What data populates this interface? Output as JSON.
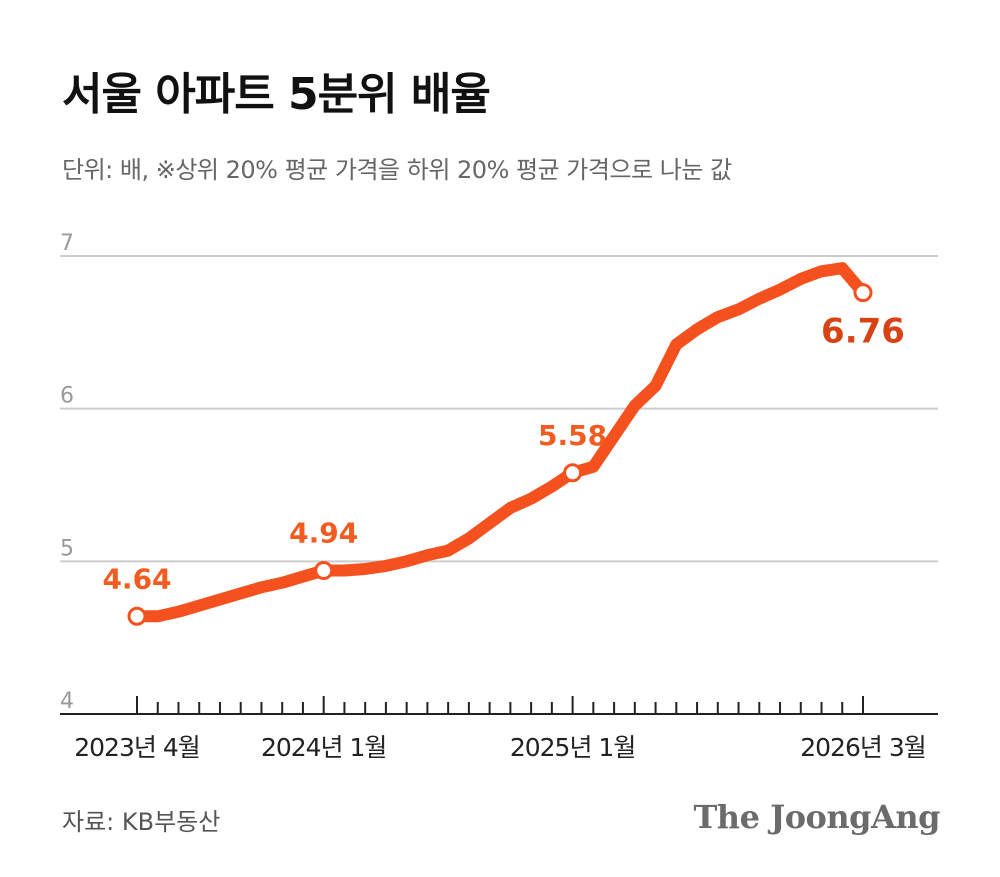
{
  "title": "서울 아파트 5분위 배율",
  "subtitle": "단위: 배, ※상위 20% 평균 가격을 하위 20% 평균 가격으로 나눈 값",
  "source": "자료: KB부동산",
  "brand": "The JoongAng",
  "colors": {
    "line": "#f4511e",
    "label": "#f25c20",
    "last_label": "#d84315",
    "grid": "#cccccc",
    "axis": "#222222",
    "tick_text": "#999999"
  },
  "chart_data": {
    "type": "line",
    "title": "서울 아파트 5분위 배율",
    "ylim": [
      4,
      7
    ],
    "yticks": [
      4,
      5,
      6,
      7
    ],
    "grid": true,
    "x_tick_labels": [
      "2023년 4월",
      "2024년 1월",
      "2025년 1월",
      "2026년 3월"
    ],
    "x_tick_label_index": [
      0,
      9,
      21,
      35
    ],
    "x": [
      "2023-04",
      "2023-05",
      "2023-06",
      "2023-07",
      "2023-08",
      "2023-09",
      "2023-10",
      "2023-11",
      "2023-12",
      "2024-01",
      "2024-02",
      "2024-03",
      "2024-04",
      "2024-05",
      "2024-06",
      "2024-07",
      "2024-08",
      "2024-09",
      "2024-10",
      "2024-11",
      "2024-12",
      "2025-01",
      "2025-02",
      "2025-03",
      "2025-04",
      "2025-05",
      "2025-06",
      "2025-07",
      "2025-08",
      "2025-09",
      "2025-10",
      "2025-11",
      "2025-12",
      "2026-01",
      "2026-02",
      "2026-03"
    ],
    "series": [
      {
        "values": [
          4.64,
          4.64,
          4.67,
          4.71,
          4.75,
          4.79,
          4.83,
          4.86,
          4.9,
          4.94,
          4.94,
          4.95,
          4.97,
          5.0,
          5.04,
          5.07,
          5.15,
          5.25,
          5.35,
          5.41,
          5.49,
          5.58,
          5.62,
          5.82,
          6.02,
          6.15,
          6.42,
          6.52,
          6.6,
          6.65,
          6.72,
          6.78,
          6.85,
          6.9,
          6.92,
          6.76
        ]
      }
    ],
    "annotations": [
      {
        "index": 0,
        "text": "4.64"
      },
      {
        "index": 9,
        "text": "4.94"
      },
      {
        "index": 21,
        "text": "5.58"
      },
      {
        "index": 35,
        "text": "6.76"
      }
    ]
  }
}
